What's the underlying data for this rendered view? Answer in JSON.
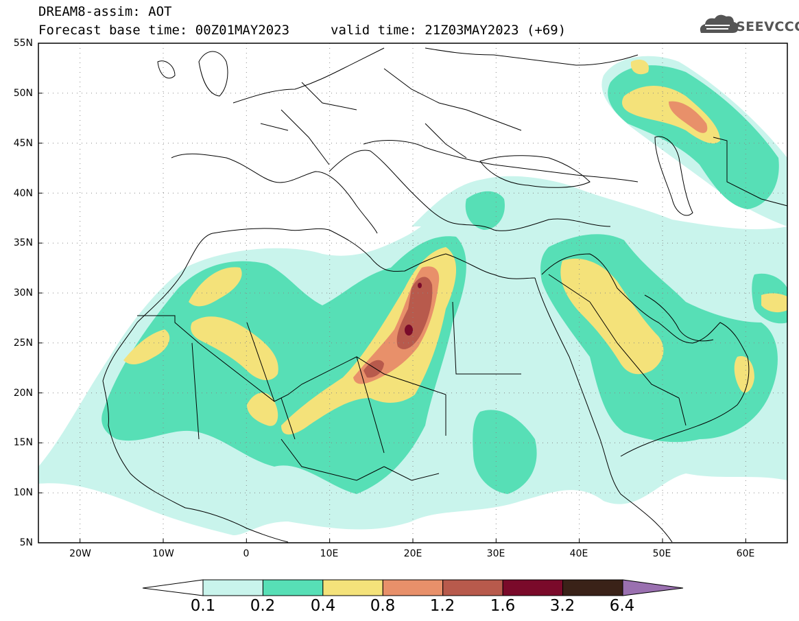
{
  "header": {
    "line1": "DREAM8-assim: AOT",
    "base_time": "Forecast base time: 00Z01MAY2023",
    "valid_time": "valid time: 21Z03MAY2023 (+69)",
    "logo_text": "SEEVCCC"
  },
  "map": {
    "lon_range": [
      -25,
      65
    ],
    "lat_range": [
      5,
      55
    ],
    "lat_ticks": [
      "55N",
      "50N",
      "45N",
      "40N",
      "35N",
      "30N",
      "25N",
      "20N",
      "15N",
      "10N",
      "5N"
    ],
    "lon_ticks": [
      "20W",
      "10W",
      "0",
      "10E",
      "20E",
      "30E",
      "40E",
      "50E",
      "60E"
    ],
    "gridlines": "dotted"
  },
  "colorbar": {
    "labels": [
      "0.1",
      "0.2",
      "0.4",
      "0.8",
      "1.2",
      "1.6",
      "3.2",
      "6.4"
    ],
    "colors": [
      "#c9f4ec",
      "#57dfb6",
      "#f4e27a",
      "#e8906a",
      "#b85a4c",
      "#7a0a2a",
      "#3a2218"
    ],
    "under_color": "#ffffff",
    "over_color": "#9a70b0"
  },
  "palette": {
    "c1": "#c9f4ec",
    "c2": "#57dfb6",
    "c3": "#f4e27a",
    "c4": "#e8906a",
    "c5": "#b85a4c",
    "c6": "#7a0a2a"
  }
}
